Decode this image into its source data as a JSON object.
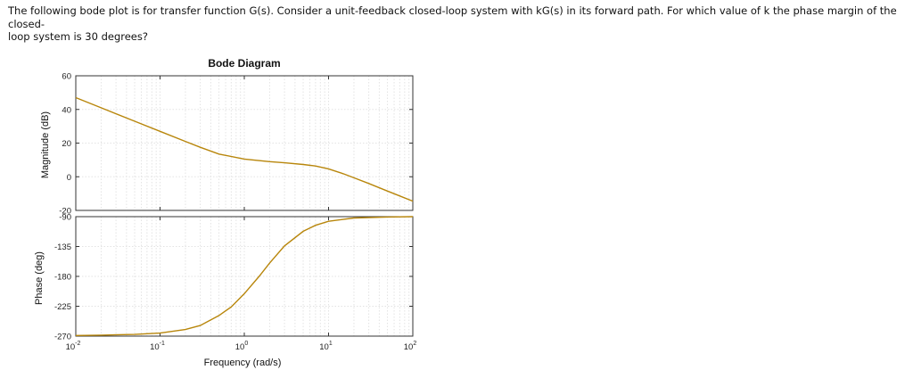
{
  "question": {
    "line1": "The following bode plot is for transfer function G(s). Consider a unit-feedback closed-loop system with kG(s) in its forward path. For which value of k the phase margin of the closed-",
    "line2": "loop system is 30 degrees?"
  },
  "chart_data": [
    {
      "type": "line",
      "panel": "magnitude",
      "title": "Bode Diagram",
      "ylabel": "Magnitude (dB)",
      "xlabel": "",
      "xscale": "log",
      "xlim": [
        0.01,
        100
      ],
      "ylim": [
        -20,
        60
      ],
      "yticks": [
        -20,
        0,
        20,
        40,
        60
      ],
      "grid": true,
      "series": [
        {
          "color": "#b8860b",
          "x": [
            0.01,
            0.02,
            0.05,
            0.1,
            0.2,
            0.3,
            0.5,
            1,
            2,
            3,
            5,
            7,
            10,
            15,
            20,
            30,
            50,
            70,
            100
          ],
          "y": [
            47,
            41,
            33,
            27,
            21,
            17.5,
            13.5,
            10.5,
            9,
            8.3,
            7.3,
            6.4,
            4.7,
            1.8,
            -0.6,
            -4,
            -8.5,
            -11.4,
            -14.5
          ]
        }
      ]
    },
    {
      "type": "line",
      "panel": "phase",
      "title": "",
      "ylabel": "Phase (deg)",
      "xlabel": "Frequency (rad/s)",
      "xscale": "log",
      "xlim": [
        0.01,
        100
      ],
      "xticks": [
        "10-2",
        "10-1",
        "100",
        "101",
        "102"
      ],
      "ylim": [
        -270,
        -90
      ],
      "yticks": [
        -270,
        -225,
        -180,
        -135,
        -90
      ],
      "grid": true,
      "series": [
        {
          "color": "#b8860b",
          "x": [
            0.01,
            0.02,
            0.05,
            0.1,
            0.2,
            0.3,
            0.5,
            0.7,
            1,
            1.5,
            2,
            3,
            5,
            7,
            10,
            20,
            50,
            100
          ],
          "y": [
            -269,
            -268.5,
            -267.5,
            -265.5,
            -260,
            -254,
            -239,
            -226,
            -206,
            -180,
            -160,
            -134,
            -112,
            -103,
            -97,
            -92,
            -90.5,
            -90
          ]
        }
      ]
    }
  ]
}
